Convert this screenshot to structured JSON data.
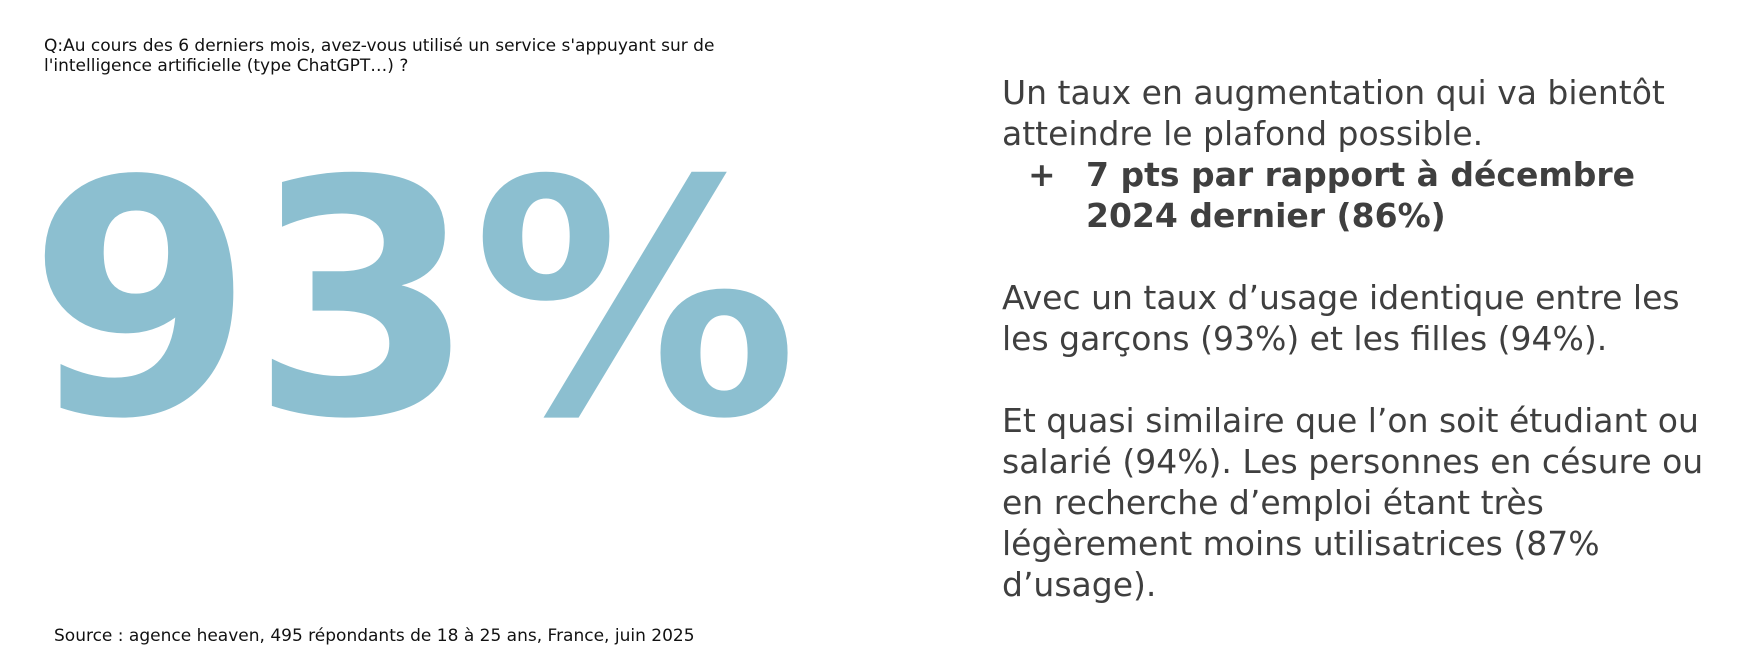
{
  "question": "Q:Au cours des 6 derniers mois, avez-vous utilisé un service s'appuyant sur de l'intelligence artificielle (type ChatGPT…) ?",
  "headline_value": "93%",
  "source": "Source : agence heaven, 495 répondants de 18 à 25 ans, France, juin 2025",
  "right": {
    "intro": "Un taux en augmentation qui va bientôt atteindre le plafond possible.",
    "bullet_mark": "+",
    "bullet_text": "7 pts par rapport à décembre 2024 dernier (86%)",
    "paragraph_2": "Avec un taux d’usage identique entre les les garçons (93%) et les filles (94%).",
    "paragraph_3": "Et quasi similaire que l’on soit étudiant ou salarié (94%). Les personnes en césure ou en recherche d’emploi étant très légèrement moins utilisatrices (87% d’usage)."
  },
  "colors": {
    "accent": "#8cbfd0",
    "body_text": "#3f3f3f",
    "small_text": "#111111"
  }
}
